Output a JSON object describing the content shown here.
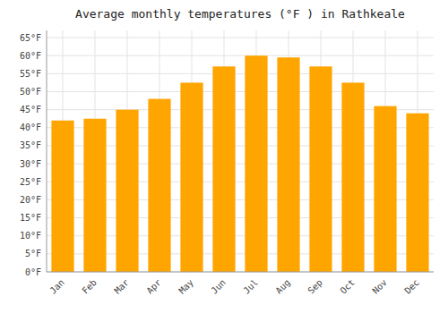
{
  "chart_data": {
    "type": "bar",
    "title": "Average monthly temperatures (°F ) in Rathkeale",
    "categories": [
      "Jan",
      "Feb",
      "Mar",
      "Apr",
      "May",
      "Jun",
      "Jul",
      "Aug",
      "Sep",
      "Oct",
      "Nov",
      "Dec"
    ],
    "values": [
      42,
      42.5,
      45,
      48,
      52.5,
      57,
      60,
      59.5,
      57,
      52.5,
      46,
      44
    ],
    "color": "#FFA500",
    "ylim": [
      0,
      67
    ],
    "yticks": [
      {
        "value": 0,
        "label": "0°F"
      },
      {
        "value": 5,
        "label": "5°F"
      },
      {
        "value": 10,
        "label": "10°F"
      },
      {
        "value": 15,
        "label": "15°F"
      },
      {
        "value": 20,
        "label": "20°F"
      },
      {
        "value": 25,
        "label": "25°F"
      },
      {
        "value": 30,
        "label": "30°F"
      },
      {
        "value": 35,
        "label": "35°F"
      },
      {
        "value": 40,
        "label": "40°F"
      },
      {
        "value": 45,
        "label": "45°F"
      },
      {
        "value": 50,
        "label": "50°F"
      },
      {
        "value": 55,
        "label": "55°F"
      },
      {
        "value": 60,
        "label": "60°F"
      },
      {
        "value": 65,
        "label": "65°F"
      }
    ],
    "grid": true
  }
}
